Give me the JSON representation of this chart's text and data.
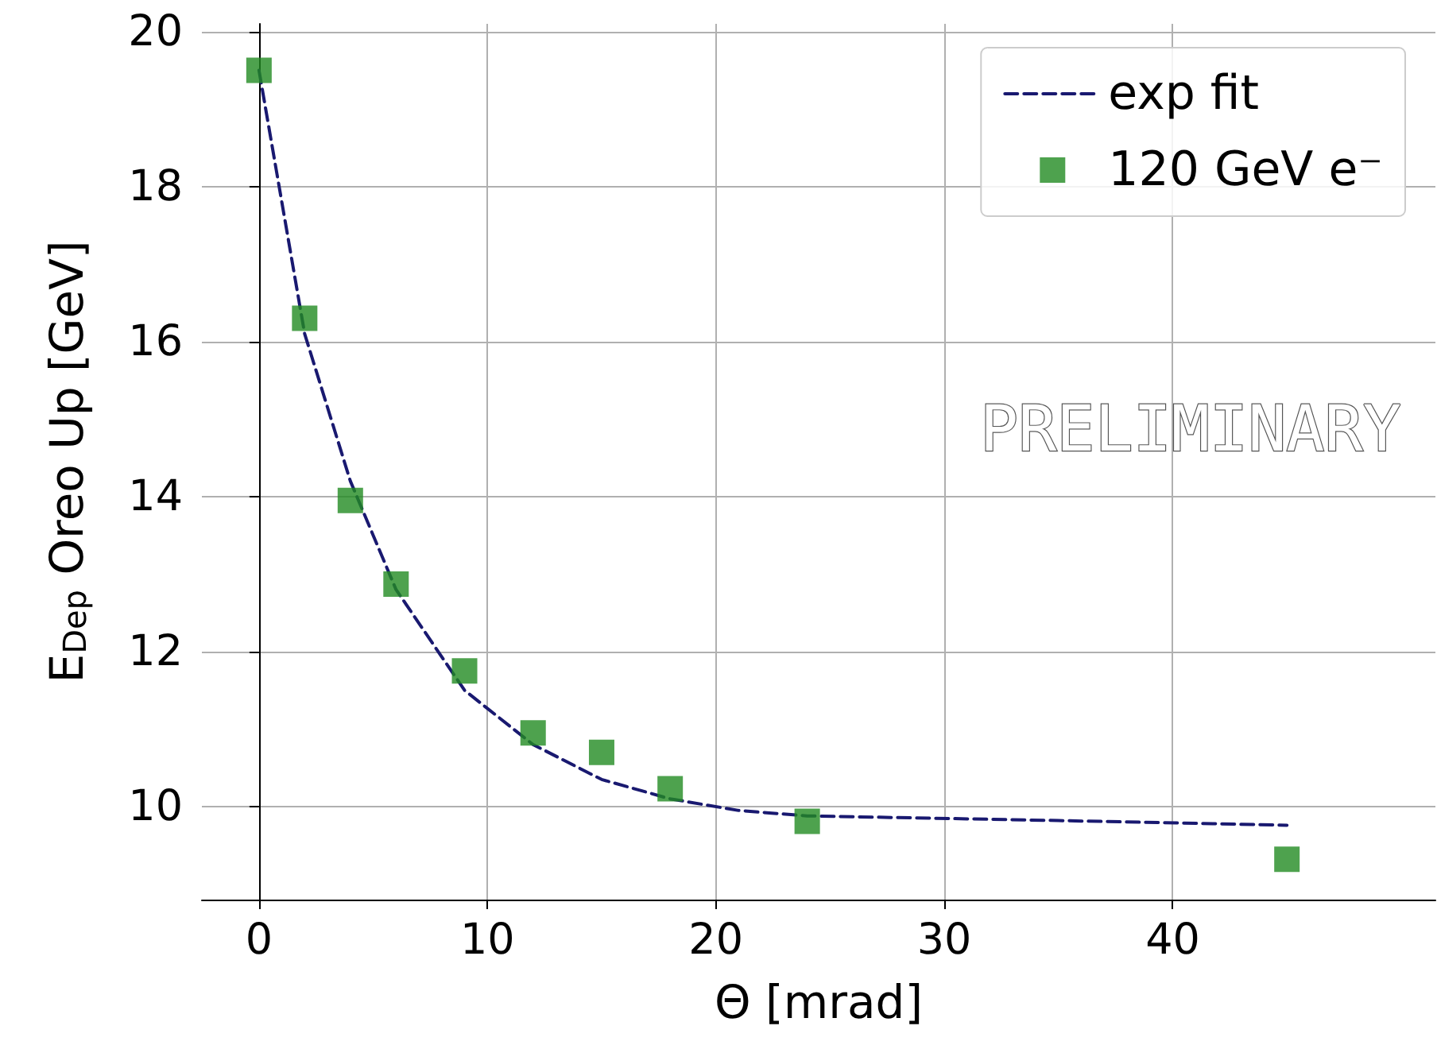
{
  "chart_data": {
    "type": "scatter",
    "xlabel": "Θ [mrad]",
    "ylabel": "E$_{Dep}$ Oreo Up [GeV]",
    "xlim": [
      -2.5,
      51.5
    ],
    "xticks": [
      0,
      10,
      20,
      30,
      40
    ],
    "ylim": [
      8.8,
      20.1
    ],
    "yticks": [
      10,
      12,
      14,
      16,
      18,
      20
    ],
    "grid": true,
    "legend": "top right",
    "annotations": [
      "PRELIMINARY"
    ],
    "series": [
      {
        "name": "exp fit",
        "type": "line",
        "color": "#191970",
        "line_style": "dashed",
        "marker": "none",
        "x": [
          0,
          2,
          4,
          6,
          9,
          12,
          15,
          18,
          21,
          24,
          35,
          45
        ],
        "values": [
          19.5,
          16.1,
          14.2,
          12.8,
          11.5,
          10.8,
          10.35,
          10.1,
          9.95,
          9.88,
          9.82,
          9.76
        ]
      },
      {
        "name": "120 GeV e⁻",
        "color": "#228b22",
        "marker": "square",
        "x": [
          0,
          2,
          4,
          6,
          9,
          12,
          15,
          18,
          24,
          45
        ],
        "values": [
          19.5,
          16.3,
          13.95,
          12.87,
          11.75,
          10.95,
          10.7,
          10.23,
          9.81,
          9.32
        ]
      }
    ]
  }
}
